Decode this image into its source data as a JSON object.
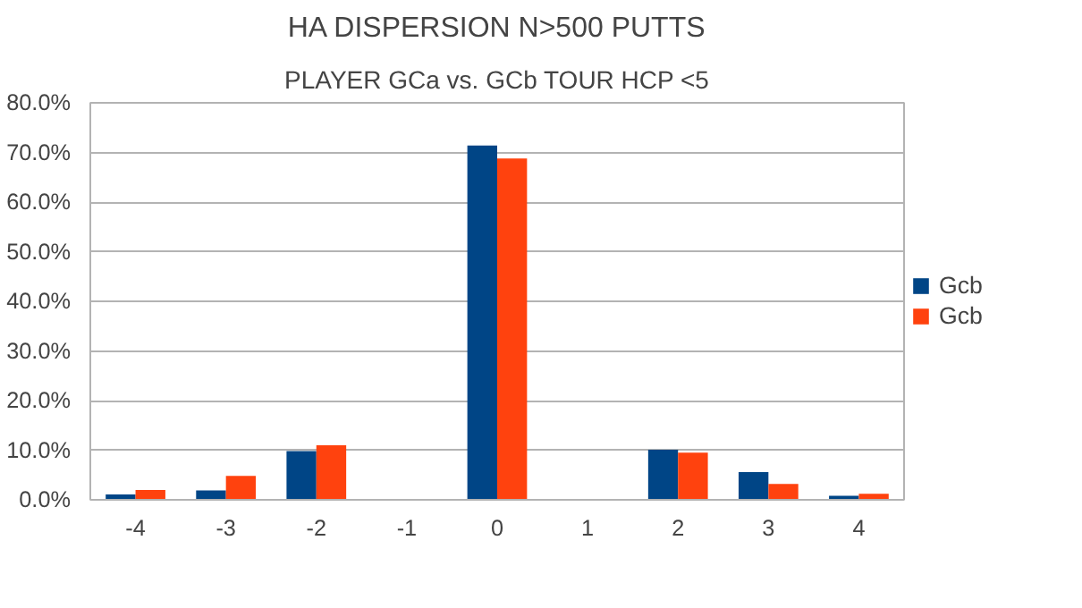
{
  "chart_data": {
    "type": "bar",
    "title": "HA DISPERSION N>500 PUTTS",
    "subtitle": "PLAYER GCa vs. GCb TOUR HCP <5",
    "categories": [
      "-4",
      "-3",
      "-2",
      "-1",
      "0",
      "1",
      "2",
      "3",
      "4"
    ],
    "series": [
      {
        "name": "Gcb",
        "color": "#004586",
        "values": [
          1.1,
          1.9,
          9.8,
          0,
          71.4,
          0,
          10.1,
          5.6,
          0.8
        ]
      },
      {
        "name": "Gcb",
        "color": "#ff420e",
        "values": [
          2.0,
          4.8,
          11.0,
          0,
          68.8,
          0,
          9.5,
          3.2,
          1.2
        ]
      }
    ],
    "ylim": [
      0,
      80
    ],
    "yticks": [
      {
        "value": 0,
        "label": "0.0%"
      },
      {
        "value": 10,
        "label": "10.0%"
      },
      {
        "value": 20,
        "label": "20.0%"
      },
      {
        "value": 30,
        "label": "30.0%"
      },
      {
        "value": 40,
        "label": "40.0%"
      },
      {
        "value": 50,
        "label": "50.0%"
      },
      {
        "value": 60,
        "label": "60.0%"
      },
      {
        "value": 70,
        "label": "70.0%"
      },
      {
        "value": 80,
        "label": "80.0%"
      }
    ],
    "grid": "y",
    "legend": "right"
  }
}
